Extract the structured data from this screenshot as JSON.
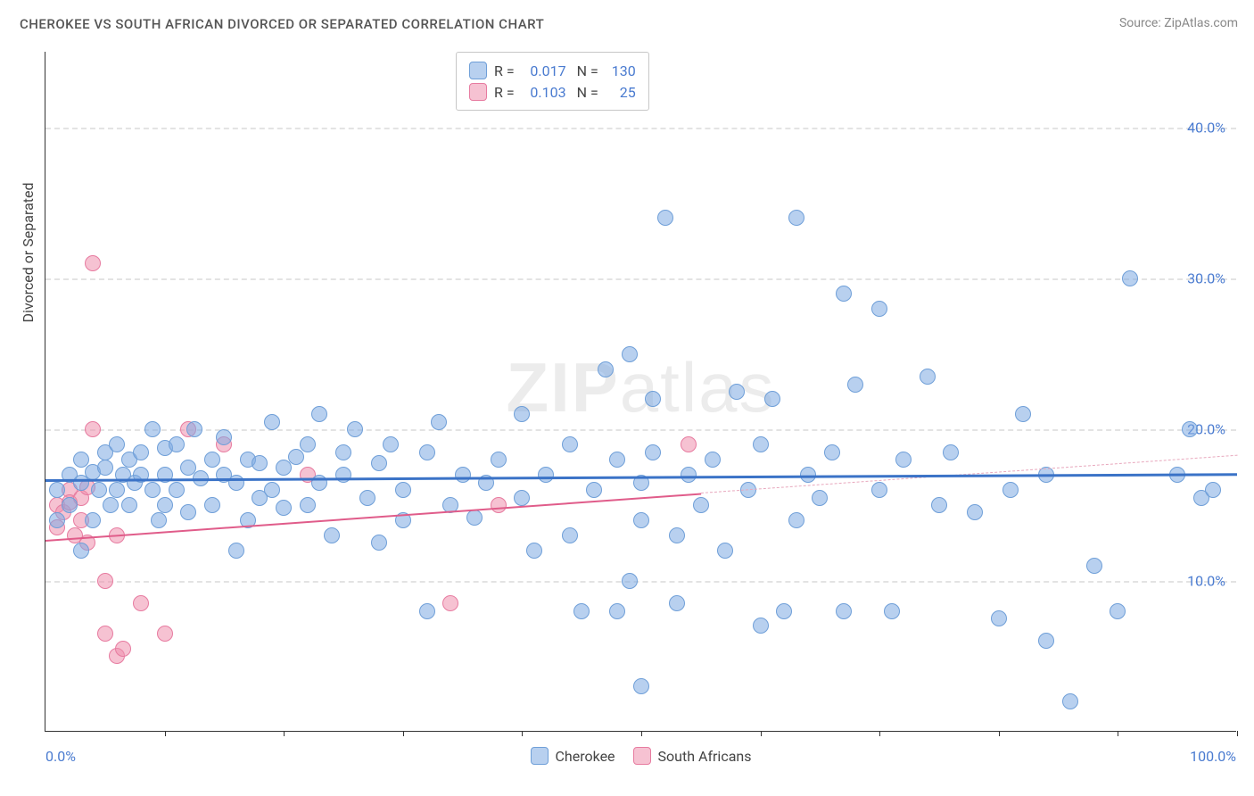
{
  "title": "CHEROKEE VS SOUTH AFRICAN DIVORCED OR SEPARATED CORRELATION CHART",
  "source_label": "Source: ZipAtlas.com",
  "watermark": {
    "bold": "ZIP",
    "light": "atlas"
  },
  "y_axis_title": "Divorced or Separated",
  "chart": {
    "type": "scatter",
    "background_color": "#ffffff",
    "grid_color": "#e3e3e3",
    "axis_color": "#333333",
    "xlim": [
      0,
      100
    ],
    "ylim": [
      0,
      45
    ],
    "y_ticks": [
      10,
      20,
      30,
      40
    ],
    "y_tick_labels": [
      "10.0%",
      "20.0%",
      "30.0%",
      "40.0%"
    ],
    "x_tick_marks": [
      10,
      20,
      30,
      40,
      50,
      60,
      70,
      80,
      90,
      100
    ],
    "x_min_label": "0.0%",
    "x_max_label": "100.0%",
    "tick_label_color": "#4a7bd0",
    "marker_radius": 9,
    "marker_border_width": 1.5,
    "series": [
      {
        "name": "Cherokee",
        "fill_color": "rgba(125,169,226,0.55)",
        "stroke_color": "#6f9fd8",
        "regression": {
          "x1": 0,
          "y1": 16.7,
          "x2": 100,
          "y2": 17.1,
          "color": "#3b73c7",
          "width": 3
        },
        "R": "0.017",
        "N": "130",
        "points": [
          [
            1,
            16
          ],
          [
            1,
            14
          ],
          [
            2,
            17
          ],
          [
            2,
            15
          ],
          [
            3,
            18
          ],
          [
            3,
            12
          ],
          [
            3,
            16.5
          ],
          [
            4,
            17.2
          ],
          [
            4,
            14
          ],
          [
            4.5,
            16
          ],
          [
            5,
            17.5
          ],
          [
            5,
            18.5
          ],
          [
            5.5,
            15
          ],
          [
            6,
            19
          ],
          [
            6,
            16
          ],
          [
            6.5,
            17
          ],
          [
            7,
            18
          ],
          [
            7,
            15
          ],
          [
            7.5,
            16.5
          ],
          [
            8,
            17
          ],
          [
            8,
            18.5
          ],
          [
            9,
            20
          ],
          [
            9,
            16
          ],
          [
            9.5,
            14
          ],
          [
            10,
            17
          ],
          [
            10,
            18.8
          ],
          [
            10,
            15
          ],
          [
            11,
            16
          ],
          [
            11,
            19
          ],
          [
            12,
            17.5
          ],
          [
            12,
            14.5
          ],
          [
            12.5,
            20
          ],
          [
            13,
            16.8
          ],
          [
            14,
            18
          ],
          [
            14,
            15
          ],
          [
            15,
            17
          ],
          [
            15,
            19.5
          ],
          [
            16,
            12
          ],
          [
            16,
            16.5
          ],
          [
            17,
            18
          ],
          [
            17,
            14
          ],
          [
            18,
            15.5
          ],
          [
            18,
            17.8
          ],
          [
            19,
            20.5
          ],
          [
            19,
            16
          ],
          [
            20,
            17.5
          ],
          [
            20,
            14.8
          ],
          [
            21,
            18.2
          ],
          [
            22,
            19
          ],
          [
            22,
            15
          ],
          [
            23,
            16.5
          ],
          [
            23,
            21
          ],
          [
            24,
            13
          ],
          [
            25,
            17
          ],
          [
            25,
            18.5
          ],
          [
            26,
            20
          ],
          [
            27,
            15.5
          ],
          [
            28,
            17.8
          ],
          [
            28,
            12.5
          ],
          [
            29,
            19
          ],
          [
            30,
            16
          ],
          [
            30,
            14
          ],
          [
            32,
            18.5
          ],
          [
            32,
            8
          ],
          [
            33,
            20.5
          ],
          [
            34,
            15
          ],
          [
            35,
            17
          ],
          [
            36,
            14.2
          ],
          [
            37,
            16.5
          ],
          [
            38,
            18
          ],
          [
            40,
            15.5
          ],
          [
            40,
            21
          ],
          [
            41,
            12
          ],
          [
            42,
            17
          ],
          [
            44,
            13
          ],
          [
            44,
            19
          ],
          [
            45,
            8
          ],
          [
            46,
            16
          ],
          [
            47,
            24
          ],
          [
            48,
            18
          ],
          [
            48,
            8
          ],
          [
            49,
            10
          ],
          [
            49,
            25
          ],
          [
            50,
            14
          ],
          [
            50,
            16.5
          ],
          [
            50,
            3
          ],
          [
            51,
            22
          ],
          [
            51,
            18.5
          ],
          [
            52,
            34
          ],
          [
            53,
            13
          ],
          [
            53,
            8.5
          ],
          [
            54,
            17
          ],
          [
            55,
            15
          ],
          [
            56,
            18
          ],
          [
            57,
            12
          ],
          [
            58,
            22.5
          ],
          [
            59,
            16
          ],
          [
            60,
            19
          ],
          [
            60,
            7
          ],
          [
            61,
            22
          ],
          [
            62,
            8
          ],
          [
            63,
            14
          ],
          [
            63,
            34
          ],
          [
            64,
            17
          ],
          [
            65,
            15.5
          ],
          [
            66,
            18.5
          ],
          [
            67,
            29
          ],
          [
            67,
            8
          ],
          [
            68,
            23
          ],
          [
            70,
            16
          ],
          [
            70,
            28
          ],
          [
            71,
            8
          ],
          [
            72,
            18
          ],
          [
            74,
            23.5
          ],
          [
            75,
            15
          ],
          [
            76,
            18.5
          ],
          [
            78,
            14.5
          ],
          [
            80,
            7.5
          ],
          [
            81,
            16
          ],
          [
            82,
            21
          ],
          [
            84,
            6
          ],
          [
            84,
            17
          ],
          [
            86,
            2
          ],
          [
            88,
            11
          ],
          [
            90,
            8
          ],
          [
            91,
            30
          ],
          [
            95,
            17
          ],
          [
            96,
            20
          ],
          [
            97,
            15.5
          ],
          [
            98,
            16
          ]
        ]
      },
      {
        "name": "South Africans",
        "fill_color": "rgba(238,144,173,0.55)",
        "stroke_color": "#e77ba0",
        "regression": {
          "x1": 0,
          "y1": 12.7,
          "x2": 55,
          "y2": 15.8,
          "color": "#e05c8a",
          "width": 2.5
        },
        "regression_dashed": {
          "x1": 55,
          "y1": 15.8,
          "x2": 100,
          "y2": 18.3,
          "color": "#e8a8bd",
          "width": 1.5
        },
        "R": "0.103",
        "N": "25",
        "points": [
          [
            1,
            15
          ],
          [
            1,
            13.5
          ],
          [
            1.5,
            14.5
          ],
          [
            2,
            16
          ],
          [
            2,
            15.2
          ],
          [
            2.5,
            13
          ],
          [
            3,
            14
          ],
          [
            3,
            15.5
          ],
          [
            3.5,
            12.5
          ],
          [
            3.5,
            16.2
          ],
          [
            4,
            31
          ],
          [
            4,
            20
          ],
          [
            5,
            6.5
          ],
          [
            5,
            10
          ],
          [
            6,
            5
          ],
          [
            6,
            13
          ],
          [
            6.5,
            5.5
          ],
          [
            8,
            8.5
          ],
          [
            10,
            6.5
          ],
          [
            12,
            20
          ],
          [
            15,
            19
          ],
          [
            22,
            17
          ],
          [
            34,
            8.5
          ],
          [
            38,
            15
          ],
          [
            54,
            19
          ]
        ]
      }
    ],
    "legend_series1": "Cherokee",
    "legend_series2": "South Africans"
  }
}
